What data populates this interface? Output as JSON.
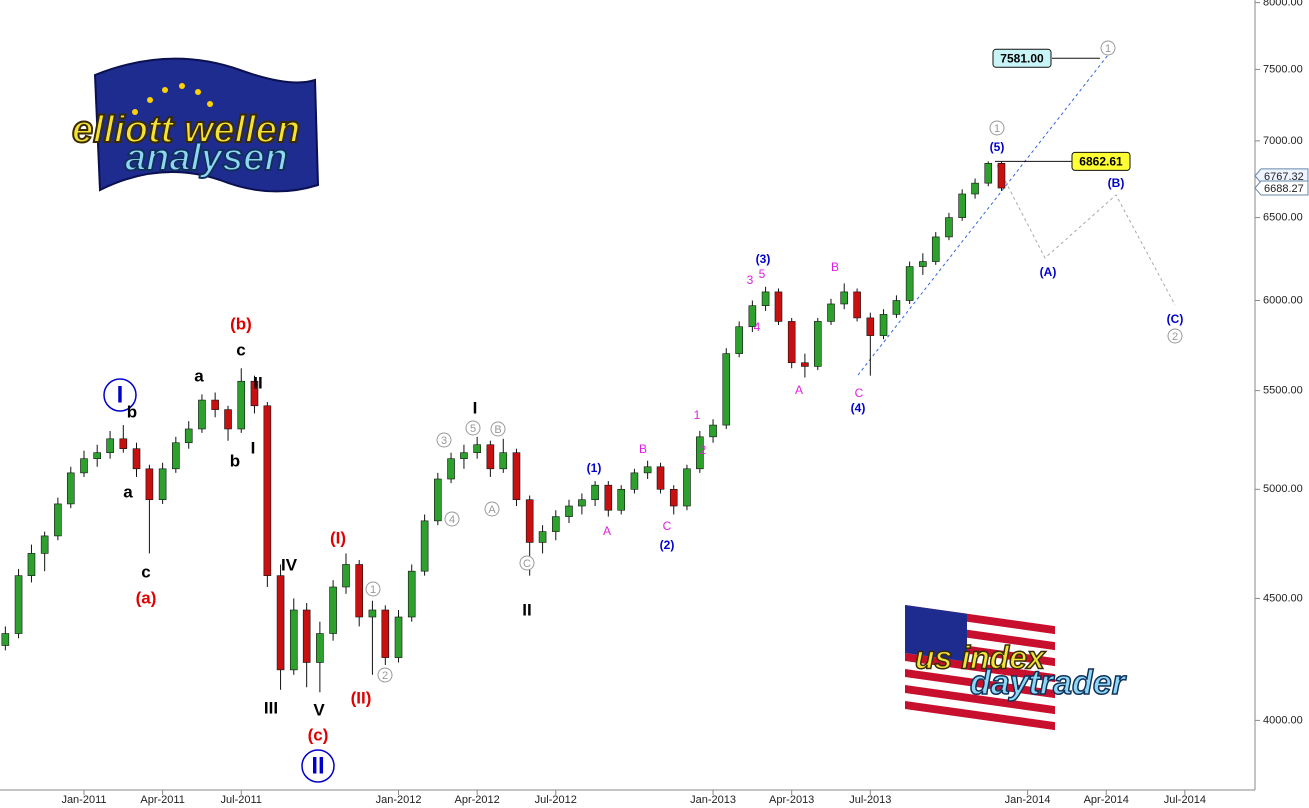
{
  "chart_data": {
    "type": "candlestick",
    "log_scale": true,
    "xlim": [
      2010.733,
      2014.723
    ],
    "ylim": [
      3740,
      8020
    ],
    "xticks": [
      {
        "value": 2011,
        "label": "Jan-2011"
      },
      {
        "value": 2011.25,
        "label": "Apr-2011"
      },
      {
        "value": 2011.5,
        "label": "Jul-2011"
      },
      {
        "value": 2012,
        "label": "Jan-2012"
      },
      {
        "value": 2012.25,
        "label": "Apr-2012"
      },
      {
        "value": 2012.5,
        "label": "Jul-2012"
      },
      {
        "value": 2013,
        "label": "Jan-2013"
      },
      {
        "value": 2013.25,
        "label": "Apr-2013"
      },
      {
        "value": 2013.5,
        "label": "Jul-2013"
      },
      {
        "value": 2014,
        "label": "Jan-2014"
      },
      {
        "value": 2014.25,
        "label": "Apr-2014"
      },
      {
        "value": 2014.5,
        "label": "Jul-2014"
      }
    ],
    "yticks": [
      {
        "value": 4000,
        "label": "4000.00"
      },
      {
        "value": 4500,
        "label": "4500.00"
      },
      {
        "value": 5000,
        "label": "5000.00"
      },
      {
        "value": 5500,
        "label": "5500.00"
      },
      {
        "value": 6000,
        "label": "6000.00"
      },
      {
        "value": 6500,
        "label": "6500.00"
      },
      {
        "value": 7000,
        "label": "7000.00"
      },
      {
        "value": 7500,
        "label": "7500.00"
      },
      {
        "value": 8000,
        "label": "8000.00"
      }
    ],
    "up_color": "#2ea02e",
    "down_color": "#c81010",
    "x": [
      2010.75,
      2010.792,
      2010.833,
      2010.875,
      2010.917,
      2010.958,
      2011,
      2011.042,
      2011.083,
      2011.125,
      2011.167,
      2011.208,
      2011.25,
      2011.292,
      2011.333,
      2011.375,
      2011.417,
      2011.458,
      2011.5,
      2011.542,
      2011.583,
      2011.625,
      2011.667,
      2011.708,
      2011.75,
      2011.792,
      2011.833,
      2011.875,
      2011.917,
      2011.958,
      2012,
      2012.042,
      2012.083,
      2012.125,
      2012.167,
      2012.208,
      2012.25,
      2012.292,
      2012.333,
      2012.375,
      2012.417,
      2012.458,
      2012.5,
      2012.542,
      2012.583,
      2012.625,
      2012.667,
      2012.708,
      2012.75,
      2012.792,
      2012.833,
      2012.875,
      2012.917,
      2012.958,
      2013,
      2013.042,
      2013.083,
      2013.125,
      2013.167,
      2013.208,
      2013.25,
      2013.292,
      2013.333,
      2013.375,
      2013.417,
      2013.458,
      2013.5,
      2013.542,
      2013.583,
      2013.625,
      2013.667,
      2013.708,
      2013.75,
      2013.792,
      2013.833,
      2013.875,
      2013.917
    ],
    "ohlc": [
      [
        4300,
        4380,
        4280,
        4350
      ],
      [
        4350,
        4630,
        4330,
        4600
      ],
      [
        4600,
        4740,
        4570,
        4700
      ],
      [
        4700,
        4800,
        4620,
        4780
      ],
      [
        4780,
        4960,
        4760,
        4930
      ],
      [
        4930,
        5110,
        4910,
        5080
      ],
      [
        5080,
        5190,
        5060,
        5150
      ],
      [
        5150,
        5220,
        5110,
        5180
      ],
      [
        5180,
        5290,
        5150,
        5250
      ],
      [
        5250,
        5320,
        5180,
        5200
      ],
      [
        5200,
        5230,
        5060,
        5100
      ],
      [
        5100,
        5120,
        4700,
        4950
      ],
      [
        4950,
        5130,
        4930,
        5100
      ],
      [
        5100,
        5260,
        5080,
        5230
      ],
      [
        5230,
        5340,
        5200,
        5300
      ],
      [
        5300,
        5480,
        5280,
        5450
      ],
      [
        5450,
        5490,
        5360,
        5400
      ],
      [
        5400,
        5420,
        5240,
        5300
      ],
      [
        5300,
        5620,
        5280,
        5550
      ],
      [
        5550,
        5580,
        5380,
        5420
      ],
      [
        5420,
        5440,
        4550,
        4600
      ],
      [
        4600,
        4650,
        4120,
        4200
      ],
      [
        4200,
        4500,
        4180,
        4450
      ],
      [
        4450,
        4480,
        4130,
        4230
      ],
      [
        4230,
        4400,
        4110,
        4350
      ],
      [
        4350,
        4580,
        4320,
        4550
      ],
      [
        4550,
        4700,
        4520,
        4650
      ],
      [
        4650,
        4670,
        4380,
        4420
      ],
      [
        4420,
        4490,
        4180,
        4450
      ],
      [
        4450,
        4470,
        4220,
        4250
      ],
      [
        4250,
        4450,
        4230,
        4420
      ],
      [
        4420,
        4650,
        4400,
        4620
      ],
      [
        4620,
        4880,
        4600,
        4850
      ],
      [
        4850,
        5080,
        4830,
        5050
      ],
      [
        5050,
        5180,
        5030,
        5150
      ],
      [
        5150,
        5220,
        5100,
        5180
      ],
      [
        5180,
        5260,
        5150,
        5220
      ],
      [
        5220,
        5240,
        5060,
        5100
      ],
      [
        5100,
        5250,
        5080,
        5180
      ],
      [
        5180,
        5200,
        4920,
        4950
      ],
      [
        4950,
        4970,
        4600,
        4750
      ],
      [
        4750,
        4830,
        4700,
        4800
      ],
      [
        4800,
        4900,
        4760,
        4870
      ],
      [
        4870,
        4950,
        4840,
        4920
      ],
      [
        4920,
        4980,
        4880,
        4950
      ],
      [
        4950,
        5040,
        4920,
        5020
      ],
      [
        5020,
        5040,
        4870,
        4900
      ],
      [
        4900,
        5020,
        4880,
        5000
      ],
      [
        5000,
        5100,
        4980,
        5080
      ],
      [
        5080,
        5140,
        5050,
        5110
      ],
      [
        5110,
        5130,
        4980,
        5000
      ],
      [
        5000,
        5020,
        4880,
        4920
      ],
      [
        4920,
        5120,
        4900,
        5100
      ],
      [
        5100,
        5290,
        5080,
        5260
      ],
      [
        5260,
        5350,
        5230,
        5320
      ],
      [
        5320,
        5730,
        5300,
        5700
      ],
      [
        5700,
        5880,
        5680,
        5850
      ],
      [
        5850,
        6000,
        5820,
        5970
      ],
      [
        5970,
        6080,
        5940,
        6050
      ],
      [
        6050,
        6070,
        5860,
        5880
      ],
      [
        5880,
        5900,
        5620,
        5650
      ],
      [
        5650,
        5700,
        5570,
        5630
      ],
      [
        5630,
        5900,
        5610,
        5880
      ],
      [
        5880,
        6010,
        5860,
        5980
      ],
      [
        5980,
        6100,
        5950,
        6050
      ],
      [
        6050,
        6070,
        5880,
        5900
      ],
      [
        5900,
        5930,
        5580,
        5800
      ],
      [
        5800,
        5950,
        5780,
        5920
      ],
      [
        5920,
        6030,
        5900,
        6000
      ],
      [
        6000,
        6230,
        5980,
        6200
      ],
      [
        6200,
        6280,
        6150,
        6230
      ],
      [
        6230,
        6410,
        6210,
        6380
      ],
      [
        6380,
        6530,
        6360,
        6500
      ],
      [
        6500,
        6680,
        6480,
        6650
      ],
      [
        6650,
        6750,
        6620,
        6720
      ],
      [
        6720,
        6862.61,
        6700,
        6850
      ],
      [
        6850,
        6860,
        6670,
        6688.27
      ]
    ],
    "targets": [
      {
        "value": 7581,
        "label": "7581.00",
        "color": "#c8f4f8"
      },
      {
        "value": 6862.61,
        "label": "6862.61",
        "color": "#ffff33"
      }
    ],
    "price_labels": [
      {
        "value": 6767.32,
        "label": "6767.32"
      },
      {
        "value": 6688.27,
        "label": "6688.27"
      }
    ],
    "annotations": [
      {
        "text": "I",
        "color": "#0000cc",
        "circle": "big"
      },
      {
        "text": "b",
        "color": "#000000"
      },
      {
        "text": "a",
        "color": "#000000"
      },
      {
        "text": "c",
        "color": "#000000"
      },
      {
        "text": "(a)",
        "color": "#e00000"
      },
      {
        "text": "a",
        "color": "#000000"
      },
      {
        "text": "b",
        "color": "#000000"
      },
      {
        "text": "c",
        "color": "#000000"
      },
      {
        "text": "(b)",
        "color": "#e00000"
      },
      {
        "text": "II",
        "color": "#000000"
      },
      {
        "text": "I",
        "color": "#000000"
      },
      {
        "text": "IV",
        "color": "#000000"
      },
      {
        "text": "III",
        "color": "#000000"
      },
      {
        "text": "V",
        "color": "#000000"
      },
      {
        "text": "(c)",
        "color": "#e00000"
      },
      {
        "text": "II",
        "color": "#0000cc",
        "circle": "big"
      },
      {
        "text": "(I)",
        "color": "#e00000"
      },
      {
        "text": "(II)",
        "color": "#e00000"
      },
      {
        "text": "1",
        "color": "#999999",
        "circle": "small"
      },
      {
        "text": "2",
        "color": "#999999",
        "circle": "small"
      },
      {
        "text": "3",
        "color": "#999999",
        "circle": "small"
      },
      {
        "text": "4",
        "color": "#999999",
        "circle": "small"
      },
      {
        "text": "5",
        "color": "#999999",
        "circle": "small"
      },
      {
        "text": "A",
        "color": "#999999",
        "circle": "small"
      },
      {
        "text": "B",
        "color": "#999999",
        "circle": "small"
      },
      {
        "text": "I",
        "color": "#000000"
      },
      {
        "text": "C",
        "color": "#999999",
        "circle": "small"
      },
      {
        "text": "II",
        "color": "#000000"
      },
      {
        "text": "(1)",
        "color": "#0000cc"
      },
      {
        "text": "A",
        "color": "#e020e0"
      },
      {
        "text": "B",
        "color": "#e020e0"
      },
      {
        "text": "C",
        "color": "#e020e0"
      },
      {
        "text": "(2)",
        "color": "#0000cc"
      },
      {
        "text": "1",
        "color": "#e020e0"
      },
      {
        "text": "2",
        "color": "#e020e0"
      },
      {
        "text": "3",
        "color": "#e020e0"
      },
      {
        "text": "5",
        "color": "#e020e0"
      },
      {
        "text": "4",
        "color": "#e020e0"
      },
      {
        "text": "(3)",
        "color": "#0000cc"
      },
      {
        "text": "A",
        "color": "#e020e0"
      },
      {
        "text": "B",
        "color": "#e020e0"
      },
      {
        "text": "C",
        "color": "#e020e0"
      },
      {
        "text": "(4)",
        "color": "#0000cc"
      },
      {
        "text": "1",
        "color": "#999999",
        "circle": "small"
      },
      {
        "text": "(5)",
        "color": "#0000cc"
      },
      {
        "text": "(A)",
        "color": "#0000cc"
      },
      {
        "text": "(B)",
        "color": "#0000cc"
      },
      {
        "text": "(C)",
        "color": "#0000cc"
      },
      {
        "text": "2",
        "color": "#999999",
        "circle": "small"
      },
      {
        "text": "1",
        "color": "#999999",
        "circle": "small"
      }
    ],
    "logos": [
      {
        "lines": [
          "elliott wellen",
          "analysen"
        ]
      },
      {
        "lines": [
          "us index",
          "daytrader"
        ]
      }
    ]
  }
}
